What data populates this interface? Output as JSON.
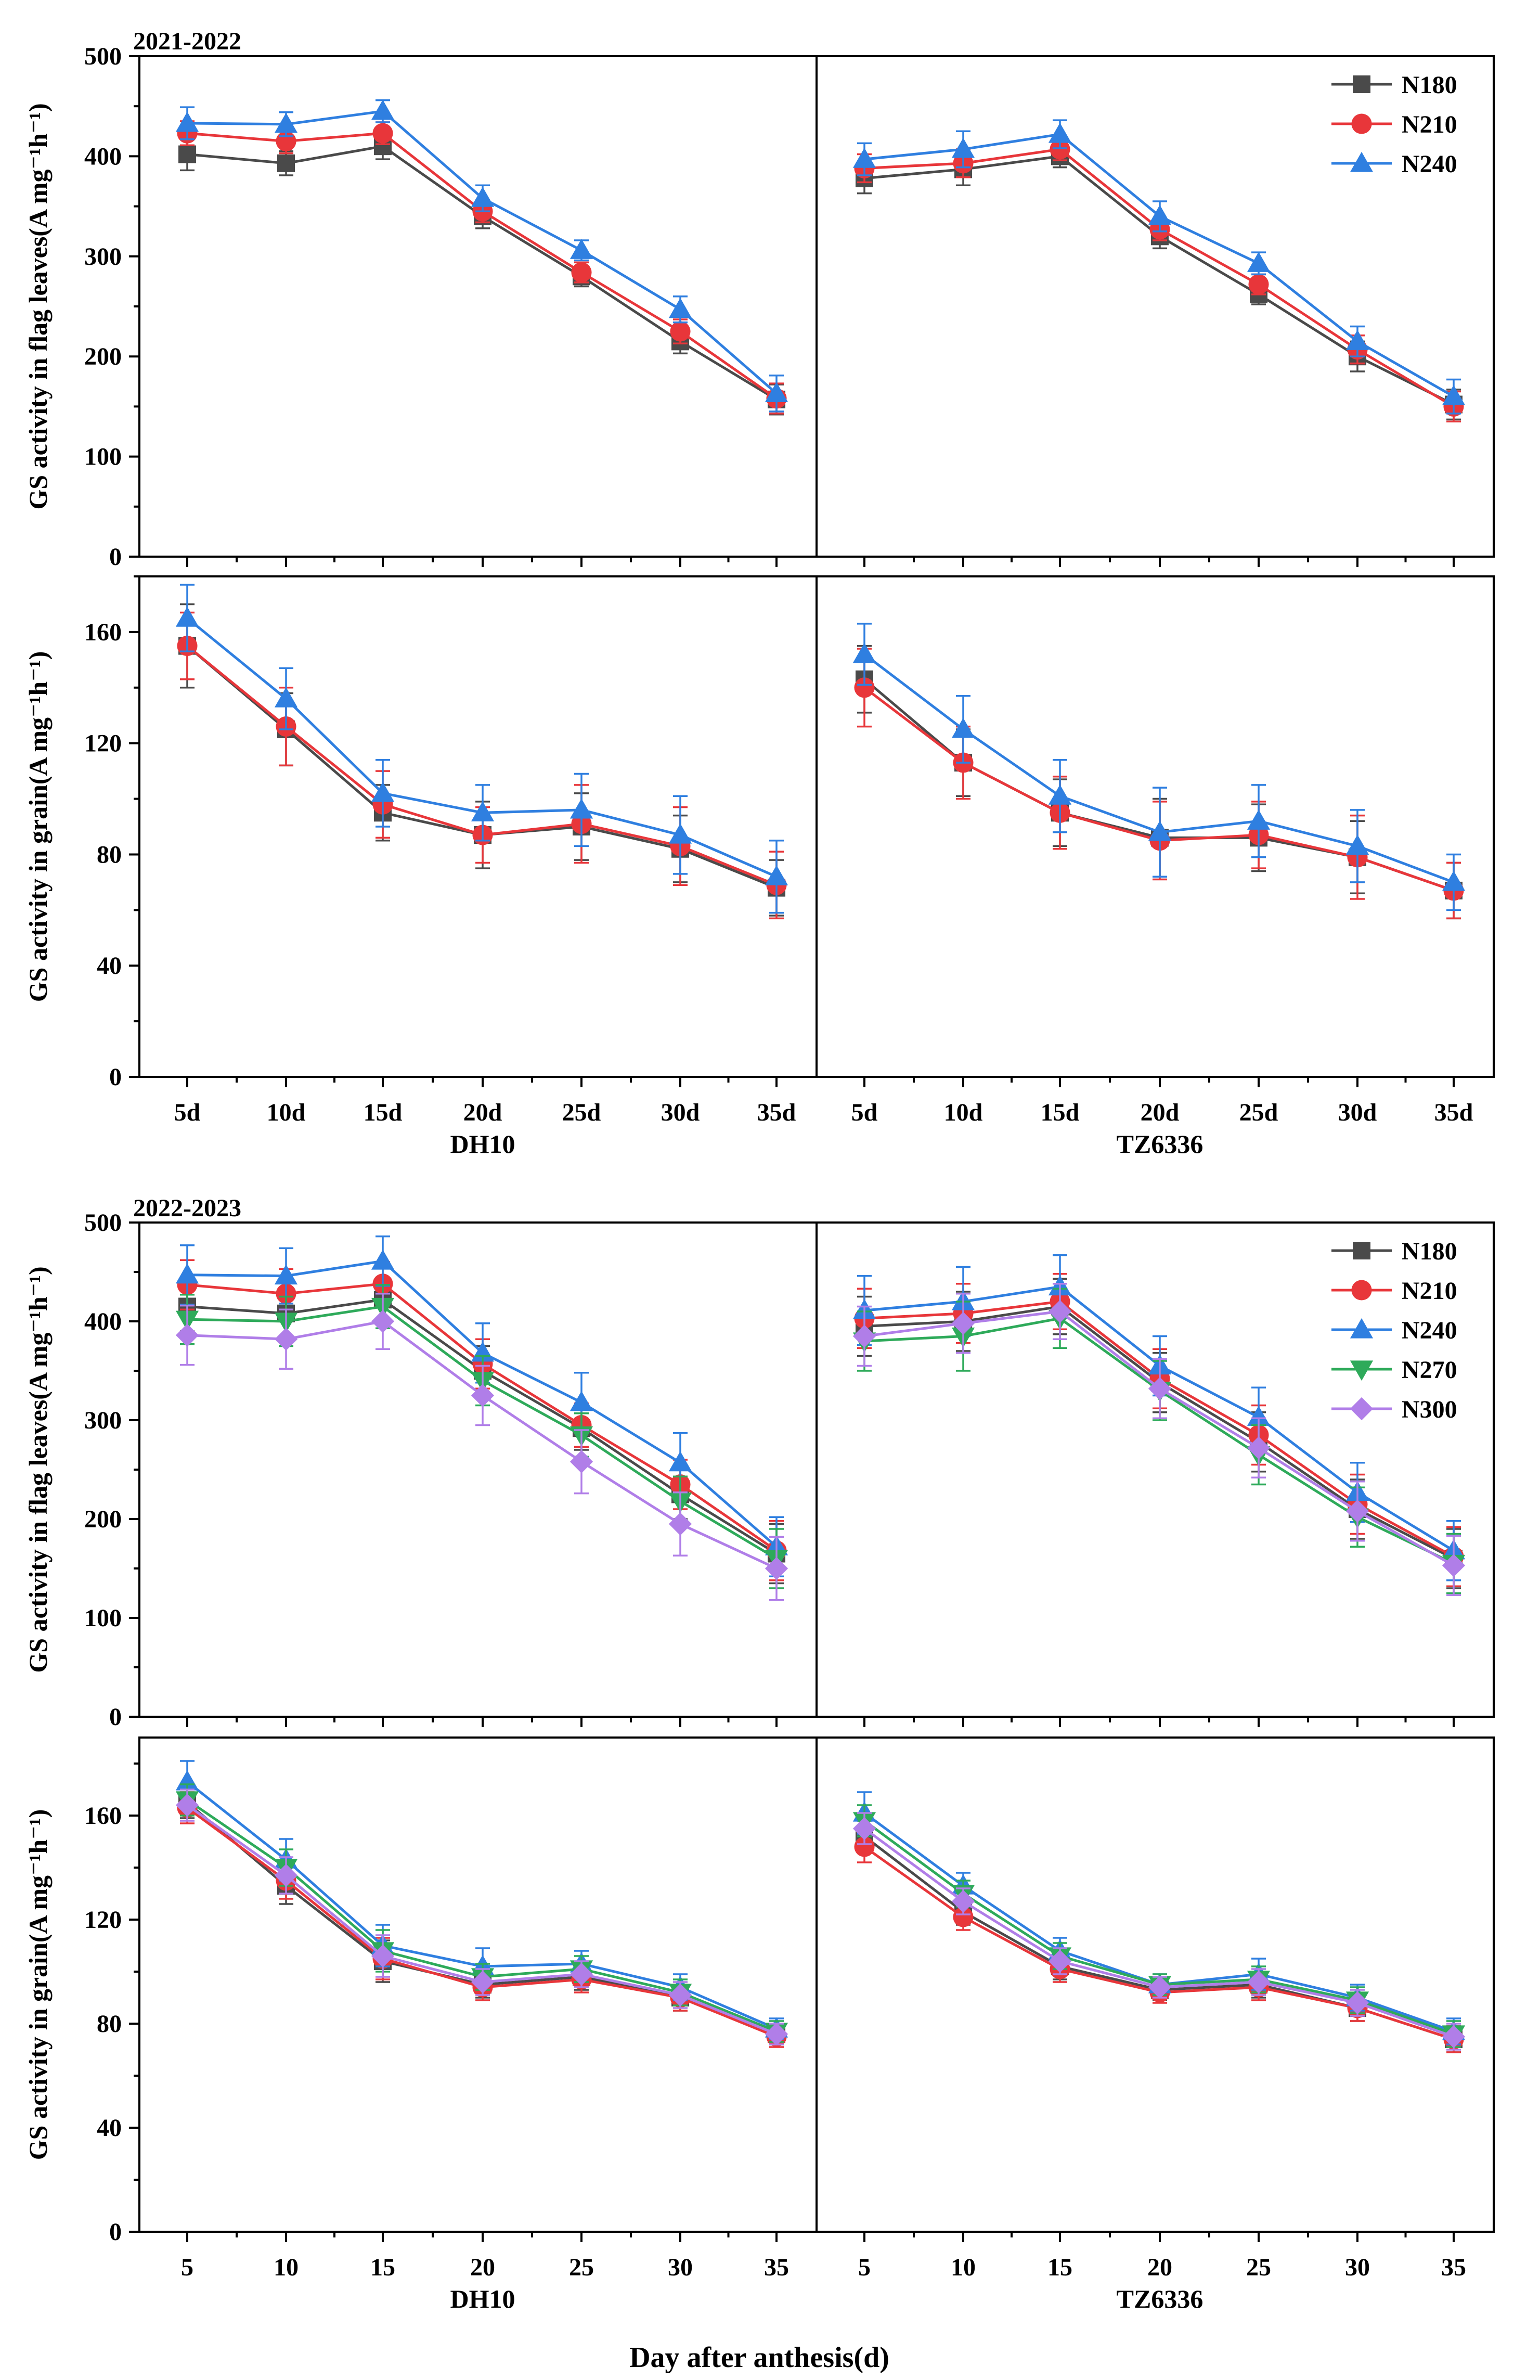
{
  "figure": {
    "x_label": "Day after anthesis(d)"
  },
  "colors": {
    "N180": "#4a4a4a",
    "N210": "#e8363a",
    "N240": "#2f7fe0",
    "N270": "#2eaa5a",
    "N300": "#b07ee8"
  },
  "markers": {
    "N180": "square",
    "N210": "circle",
    "N240": "triangle-up",
    "N270": "triangle-down",
    "N300": "diamond"
  },
  "chart_data": [
    {
      "type": "line",
      "year": "2021-2022",
      "panel": "top",
      "ylabel": "GS activity in flag leaves(A mg⁻¹h⁻¹)",
      "ylim": [
        0,
        500
      ],
      "yticks": [
        0,
        100,
        200,
        300,
        400,
        500
      ],
      "minor_step": 50,
      "x": [
        "5d",
        "10d",
        "15d",
        "20d",
        "25d",
        "30d",
        "35d"
      ],
      "show_x_labels": false,
      "legend": [
        "N180",
        "N210",
        "N240"
      ],
      "subplots": [
        {
          "cultivar": "DH10",
          "series": [
            {
              "name": "N180",
              "values": [
                402,
                393,
                410,
                340,
                280,
                215,
                157
              ],
              "err": [
                16,
                12,
                13,
                12,
                10,
                12,
                15
              ]
            },
            {
              "name": "N210",
              "values": [
                423,
                415,
                423,
                345,
                284,
                225,
                158
              ],
              "err": [
                12,
                12,
                11,
                11,
                10,
                12,
                15
              ]
            },
            {
              "name": "N240",
              "values": [
                433,
                432,
                445,
                358,
                306,
                247,
                163
              ],
              "err": [
                16,
                12,
                11,
                13,
                10,
                13,
                18
              ]
            }
          ]
        },
        {
          "cultivar": "TZ6336",
          "series": [
            {
              "name": "N180",
              "values": [
                378,
                387,
                400,
                320,
                262,
                200,
                152
              ],
              "err": [
                15,
                16,
                11,
                12,
                10,
                15,
                15
              ]
            },
            {
              "name": "N210",
              "values": [
                388,
                393,
                407,
                327,
                272,
                207,
                150
              ],
              "err": [
                14,
                14,
                11,
                11,
                10,
                14,
                15
              ]
            },
            {
              "name": "N240",
              "values": [
                397,
                407,
                422,
                340,
                293,
                215,
                160
              ],
              "err": [
                16,
                18,
                14,
                15,
                11,
                15,
                17
              ]
            }
          ]
        }
      ]
    },
    {
      "type": "line",
      "year": "2021-2022",
      "panel": "bottom",
      "ylabel": "GS activity in grain(A mg⁻¹h⁻¹)",
      "ylim": [
        0,
        180
      ],
      "yticks": [
        0,
        40,
        80,
        120,
        160
      ],
      "minor_step": 20,
      "x": [
        "5d",
        "10d",
        "15d",
        "20d",
        "25d",
        "30d",
        "35d"
      ],
      "show_x_labels": true,
      "subplots": [
        {
          "cultivar": "DH10",
          "series": [
            {
              "name": "N180",
              "values": [
                155,
                125,
                95,
                87,
                90,
                82,
                68
              ],
              "err": [
                15,
                13,
                10,
                12,
                12,
                12,
                10
              ]
            },
            {
              "name": "N210",
              "values": [
                155,
                126,
                98,
                87,
                91,
                83,
                69
              ],
              "err": [
                12,
                14,
                12,
                10,
                14,
                14,
                12
              ]
            },
            {
              "name": "N240",
              "values": [
                165,
                136,
                102,
                95,
                96,
                87,
                72
              ],
              "err": [
                12,
                11,
                12,
                10,
                13,
                14,
                13
              ]
            }
          ]
        },
        {
          "cultivar": "TZ6336",
          "series": [
            {
              "name": "N180",
              "values": [
                143,
                113,
                95,
                86,
                86,
                79,
                67
              ],
              "err": [
                12,
                12,
                12,
                14,
                12,
                13,
                10
              ]
            },
            {
              "name": "N210",
              "values": [
                140,
                113,
                95,
                85,
                87,
                79,
                67
              ],
              "err": [
                14,
                13,
                13,
                14,
                12,
                15,
                10
              ]
            },
            {
              "name": "N240",
              "values": [
                152,
                125,
                101,
                88,
                92,
                83,
                70
              ],
              "err": [
                11,
                12,
                13,
                16,
                13,
                13,
                10
              ]
            }
          ]
        }
      ]
    },
    {
      "type": "line",
      "year": "2022-2023",
      "panel": "top",
      "ylabel": "GS activity in flag leaves(A mg⁻¹h⁻¹)",
      "ylim": [
        0,
        500
      ],
      "yticks": [
        0,
        100,
        200,
        300,
        400,
        500
      ],
      "minor_step": 50,
      "x": [
        "5",
        "10",
        "15",
        "20",
        "25",
        "30",
        "35"
      ],
      "show_x_labels": false,
      "legend": [
        "N180",
        "N210",
        "N240",
        "N270",
        "N300"
      ],
      "subplots": [
        {
          "cultivar": "DH10",
          "series": [
            {
              "name": "N180",
              "values": [
                415,
                408,
                422,
                350,
                292,
                225,
                165
              ],
              "err": [
                25,
                25,
                22,
                25,
                22,
                25,
                30
              ]
            },
            {
              "name": "N210",
              "values": [
                437,
                428,
                438,
                357,
                295,
                235,
                168
              ],
              "err": [
                25,
                25,
                22,
                25,
                22,
                25,
                30
              ]
            },
            {
              "name": "N240",
              "values": [
                447,
                446,
                461,
                368,
                318,
                257,
                172
              ],
              "err": [
                30,
                28,
                25,
                30,
                30,
                30,
                30
              ]
            },
            {
              "name": "N270",
              "values": [
                402,
                400,
                415,
                340,
                285,
                218,
                160
              ],
              "err": [
                25,
                25,
                22,
                25,
                22,
                25,
                30
              ]
            },
            {
              "name": "N300",
              "values": [
                386,
                382,
                400,
                325,
                258,
                195,
                150
              ],
              "err": [
                30,
                30,
                28,
                30,
                32,
                32,
                32
              ]
            }
          ]
        },
        {
          "cultivar": "TZ6336",
          "series": [
            {
              "name": "N180",
              "values": [
                395,
                400,
                415,
                338,
                278,
                210,
                160
              ],
              "err": [
                30,
                30,
                28,
                30,
                30,
                30,
                30
              ]
            },
            {
              "name": "N210",
              "values": [
                403,
                408,
                420,
                342,
                285,
                215,
                162
              ],
              "err": [
                30,
                30,
                28,
                30,
                30,
                30,
                30
              ]
            },
            {
              "name": "N240",
              "values": [
                411,
                420,
                435,
                355,
                303,
                227,
                168
              ],
              "err": [
                35,
                35,
                32,
                30,
                30,
                30,
                30
              ]
            },
            {
              "name": "N270",
              "values": [
                380,
                385,
                403,
                330,
                265,
                202,
                155
              ],
              "err": [
                30,
                35,
                30,
                30,
                30,
                30,
                30
              ]
            },
            {
              "name": "N300",
              "values": [
                385,
                398,
                410,
                332,
                272,
                208,
                153
              ],
              "err": [
                30,
                30,
                28,
                30,
                30,
                30,
                30
              ]
            }
          ]
        }
      ]
    },
    {
      "type": "line",
      "year": "2022-2023",
      "panel": "bottom",
      "ylabel": "GS activity in grain(A mg⁻¹h⁻¹)",
      "ylim": [
        0,
        190
      ],
      "yticks": [
        0,
        40,
        80,
        120,
        160
      ],
      "minor_step": 20,
      "x": [
        "5",
        "10",
        "15",
        "20",
        "25",
        "30",
        "35"
      ],
      "show_x_labels": true,
      "subplots": [
        {
          "cultivar": "DH10",
          "series": [
            {
              "name": "N180",
              "values": [
                165,
                133,
                104,
                95,
                98,
                90,
                76
              ],
              "err": [
                6,
                7,
                8,
                5,
                5,
                5,
                4
              ]
            },
            {
              "name": "N210",
              "values": [
                163,
                135,
                105,
                94,
                97,
                90,
                75
              ],
              "err": [
                6,
                7,
                8,
                5,
                5,
                5,
                4
              ]
            },
            {
              "name": "N240",
              "values": [
                173,
                143,
                110,
                102,
                103,
                94,
                78
              ],
              "err": [
                8,
                8,
                8,
                7,
                5,
                5,
                4
              ]
            },
            {
              "name": "N270",
              "values": [
                166,
                140,
                108,
                98,
                101,
                92,
                77
              ],
              "err": [
                6,
                7,
                8,
                5,
                5,
                5,
                4
              ]
            },
            {
              "name": "N300",
              "values": [
                164,
                137,
                106,
                96,
                99,
                91,
                76
              ],
              "err": [
                6,
                7,
                8,
                5,
                5,
                5,
                4
              ]
            }
          ]
        },
        {
          "cultivar": "TZ6336",
          "series": [
            {
              "name": "N180",
              "values": [
                152,
                123,
                102,
                93,
                95,
                86,
                74
              ],
              "err": [
                6,
                5,
                5,
                4,
                5,
                5,
                5
              ]
            },
            {
              "name": "N210",
              "values": [
                148,
                121,
                101,
                92,
                94,
                86,
                74
              ],
              "err": [
                6,
                5,
                5,
                4,
                5,
                5,
                5
              ]
            },
            {
              "name": "N240",
              "values": [
                161,
                133,
                108,
                95,
                99,
                90,
                77
              ],
              "err": [
                8,
                5,
                5,
                4,
                6,
                5,
                5
              ]
            },
            {
              "name": "N270",
              "values": [
                158,
                130,
                106,
                95,
                97,
                89,
                76
              ],
              "err": [
                6,
                5,
                5,
                4,
                5,
                5,
                5
              ]
            },
            {
              "name": "N300",
              "values": [
                155,
                127,
                104,
                94,
                96,
                88,
                75
              ],
              "err": [
                6,
                5,
                5,
                4,
                5,
                5,
                5
              ]
            }
          ]
        }
      ]
    }
  ]
}
